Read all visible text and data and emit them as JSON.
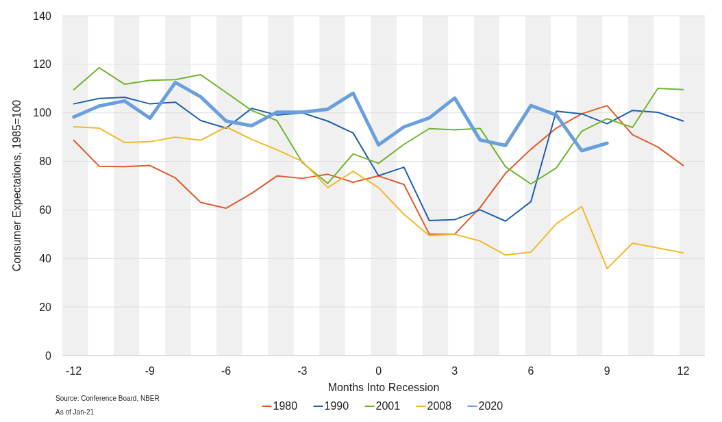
{
  "chart_data": {
    "type": "line",
    "xlabel": "Months Into Recession",
    "ylabel": "Consumer Expectations, 1985=100",
    "annotations": [
      "Source: Conference Board, NBER",
      "As of Jan-21"
    ],
    "x": [
      -12,
      -11,
      -10,
      -9,
      -8,
      -7,
      -6,
      -5,
      -4,
      -3,
      -2,
      -1,
      0,
      1,
      2,
      3,
      4,
      5,
      6,
      7,
      8,
      9,
      10,
      11,
      12
    ],
    "series": [
      {
        "name": "1980",
        "color": "#e0592a",
        "values": [
          88.7,
          78,
          77.8,
          78.3,
          73.2,
          63.1,
          60.7,
          66.8,
          74,
          73,
          74.7,
          71.4,
          74,
          70.5,
          50,
          50,
          61,
          75.1,
          85,
          93.7,
          99.6,
          103,
          91,
          85.9,
          78.3
        ]
      },
      {
        "name": "1990",
        "color": "#1f5fae",
        "values": [
          103.7,
          105.9,
          106.4,
          103.7,
          104.4,
          96.8,
          93.7,
          101.8,
          99.1,
          100,
          96.6,
          91.7,
          74.1,
          77.6,
          55.6,
          56,
          60,
          55.4,
          63.4,
          100.7,
          99.6,
          95.5,
          101,
          100.2,
          96.6
        ]
      },
      {
        "name": "2001",
        "color": "#6fb52c",
        "values": [
          109.5,
          118.6,
          111.8,
          113.4,
          113.7,
          115.7,
          108.4,
          101,
          96.8,
          79.5,
          70.9,
          83.1,
          79.2,
          87,
          93.5,
          93,
          93.6,
          77.8,
          70.7,
          77.3,
          92.4,
          97.6,
          94,
          110.1,
          109.6
        ]
      },
      {
        "name": "2008",
        "color": "#f2b82a",
        "values": [
          94.3,
          93.7,
          87.8,
          88.1,
          90,
          88.7,
          94.2,
          89.1,
          84.8,
          80,
          69.2,
          75.9,
          69.2,
          58.2,
          49.4,
          50,
          47.2,
          41.4,
          42.6,
          54.3,
          61.4,
          35.8,
          46.3,
          44.3,
          42.3
        ]
      },
      {
        "name": "2020",
        "color": "#6a9fde",
        "x": [
          -12,
          -11,
          -10,
          -9,
          -8,
          -7,
          -6,
          -5,
          -4,
          -3,
          -2,
          -1,
          0,
          1,
          2,
          3,
          4,
          5,
          6,
          7,
          8,
          9
        ],
        "values": [
          98.3,
          102.8,
          104.9,
          97.8,
          112.5,
          106.6,
          96.6,
          94.7,
          100.3,
          100.3,
          101.5,
          108.1,
          86.8,
          94.2,
          97.9,
          106.1,
          88.8,
          86.6,
          103,
          99.1,
          84.4,
          87.5
        ]
      }
    ],
    "xlim": [
      -12.45,
      12.85
    ],
    "xticks": [
      -12,
      -9,
      -6,
      -3,
      0,
      3,
      6,
      9,
      12
    ],
    "ylim": [
      0,
      140
    ],
    "yticks": [
      0,
      20,
      40,
      60,
      80,
      100,
      120,
      140
    ],
    "grid": "y",
    "legend": "bottom",
    "marker": "none",
    "line_style": "solid",
    "bands": [
      {
        "axis": "x",
        "from": -12.45,
        "to": -11.44,
        "color": "#f0f0f0"
      },
      {
        "axis": "x",
        "from": -10.43,
        "to": -9.42,
        "color": "#f0f0f0"
      },
      {
        "axis": "x",
        "from": -8.4,
        "to": -7.39,
        "color": "#f0f0f0"
      },
      {
        "axis": "x",
        "from": -6.38,
        "to": -5.37,
        "color": "#f0f0f0"
      },
      {
        "axis": "x",
        "from": -4.35,
        "to": -3.34,
        "color": "#f0f0f0"
      },
      {
        "axis": "x",
        "from": -2.33,
        "to": -1.32,
        "color": "#f0f0f0"
      },
      {
        "axis": "x",
        "from": -0.3,
        "to": 0.71,
        "color": "#f0f0f0"
      },
      {
        "axis": "x",
        "from": 1.73,
        "to": 2.74,
        "color": "#f0f0f0"
      },
      {
        "axis": "x",
        "from": 3.75,
        "to": 4.76,
        "color": "#f0f0f0"
      },
      {
        "axis": "x",
        "from": 5.78,
        "to": 6.79,
        "color": "#f0f0f0"
      },
      {
        "axis": "x",
        "from": 7.8,
        "to": 8.81,
        "color": "#f0f0f0"
      },
      {
        "axis": "x",
        "from": 9.83,
        "to": 10.84,
        "color": "#f0f0f0"
      },
      {
        "axis": "x",
        "from": 11.85,
        "to": 12.85,
        "color": "#f0f0f0"
      }
    ]
  }
}
